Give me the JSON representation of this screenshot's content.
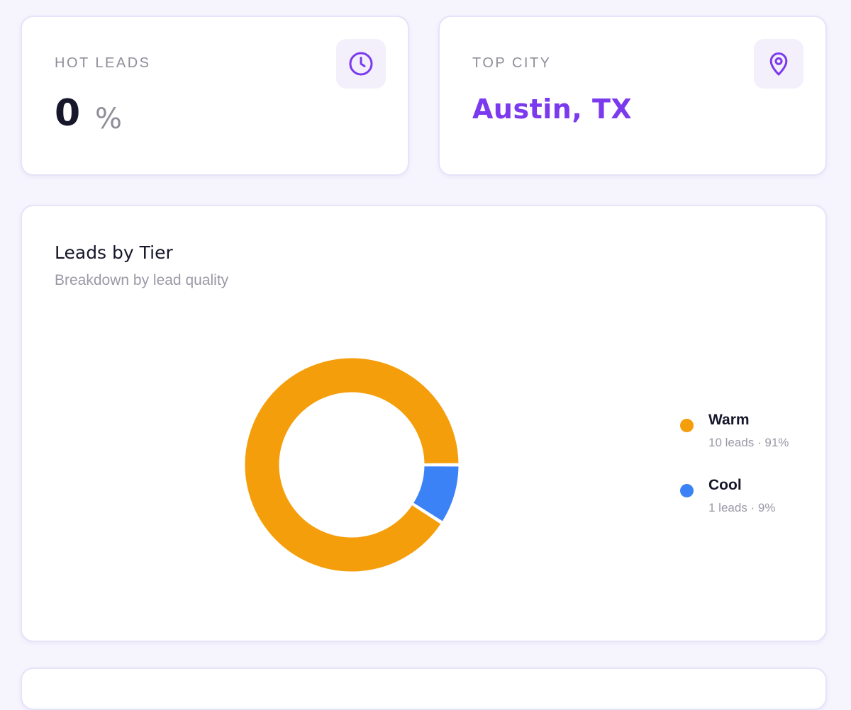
{
  "hot_leads": {
    "label": "HOT LEADS",
    "value": "0",
    "unit": "%",
    "icon": "clock-icon"
  },
  "top_city": {
    "label": "TOP CITY",
    "value": "Austin, TX",
    "icon": "map-pin-icon"
  },
  "tier_card": {
    "title": "Leads by Tier",
    "subtitle": "Breakdown by lead quality"
  },
  "legend": [
    {
      "name": "Warm",
      "detail": "10 leads · 91%",
      "color": "#f59e0b"
    },
    {
      "name": "Cool",
      "detail": "1 leads · 9%",
      "color": "#3b82f6"
    }
  ],
  "chart_data": {
    "type": "pie",
    "variant": "donut",
    "title": "Leads by Tier",
    "subtitle": "Breakdown by lead quality",
    "categories": [
      "Warm",
      "Cool"
    ],
    "values": [
      10,
      1
    ],
    "percentages": [
      91,
      9
    ],
    "colors": [
      "#f59e0b",
      "#3b82f6"
    ]
  },
  "colors": {
    "accent": "#7b3aed",
    "background": "#f6f4fd"
  }
}
